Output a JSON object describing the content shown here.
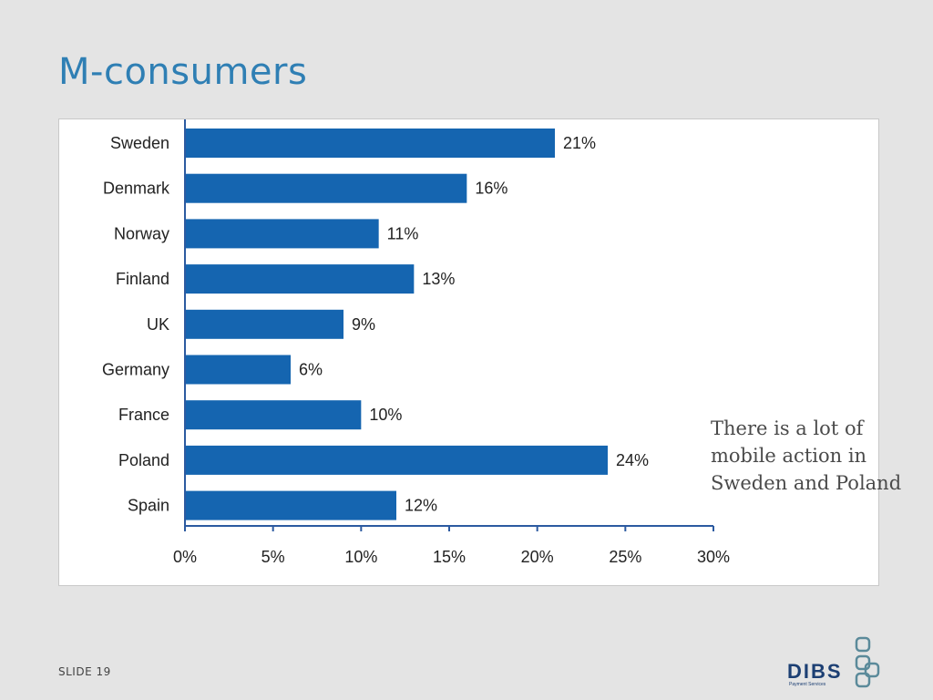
{
  "slide": {
    "title": "M-consumers",
    "annotation_lines": [
      "There is a lot of",
      "mobile action in",
      "Sweden and Poland"
    ],
    "slide_number": "SLIDE 19"
  },
  "logo": {
    "name": "DIBS",
    "tagline": "Payment Services",
    "icon": "chain-link-icon",
    "color": "#1c3f73",
    "accent": "#5b8a9a"
  },
  "colors": {
    "bar": "#1565b0",
    "title": "#2f7fb4",
    "background": "#e4e4e4",
    "axis": "#2c5aa0"
  },
  "chart_data": {
    "type": "bar",
    "orientation": "horizontal",
    "categories": [
      "Sweden",
      "Denmark",
      "Norway",
      "Finland",
      "UK",
      "Germany",
      "France",
      "Poland",
      "Spain"
    ],
    "values": [
      21,
      16,
      11,
      13,
      9,
      6,
      10,
      24,
      12
    ],
    "value_labels": [
      "21%",
      "16%",
      "11%",
      "13%",
      "9%",
      "6%",
      "10%",
      "24%",
      "12%"
    ],
    "xlim": [
      0,
      30
    ],
    "xticks": [
      0,
      5,
      10,
      15,
      20,
      25,
      30
    ],
    "xtick_labels": [
      "0%",
      "5%",
      "10%",
      "15%",
      "20%",
      "25%",
      "30%"
    ],
    "title": "",
    "xlabel": "",
    "ylabel": "",
    "grid": false,
    "legend": "none"
  }
}
